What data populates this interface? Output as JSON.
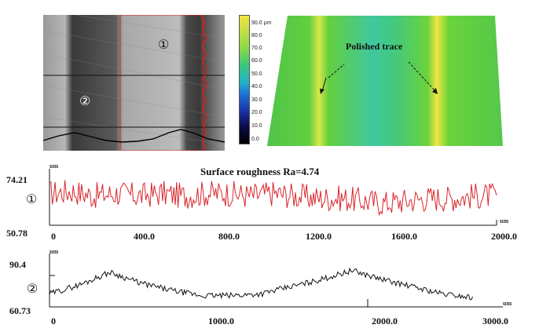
{
  "micrograph": {
    "marker_1": "①",
    "marker_2": "②"
  },
  "color_scale": {
    "ticks": [
      "90.0 µm",
      "80.0",
      "70.0",
      "60.0",
      "50.0",
      "40.0",
      "30.0",
      "20.0",
      "10.0",
      "0.0"
    ]
  },
  "heightmap": {
    "annotation": "Polished trace"
  },
  "profile_1": {
    "title": "Surface roughness Ra=4.74",
    "marker": "①",
    "unit_label": "um",
    "y_max": "74.21",
    "y_min": "50.78",
    "x_ticks": [
      "0",
      "400.0",
      "800.0",
      "1200.0",
      "1600.0",
      "2000.0"
    ],
    "line_color": "#d8262b"
  },
  "profile_2": {
    "marker": "②",
    "unit_label": "um",
    "y_max": "90.4",
    "y_min": "60.73",
    "x_ticks": [
      "0",
      "1000.0",
      "2000.0",
      "3000.0"
    ],
    "line_color": "#111111"
  },
  "chart_data": [
    {
      "type": "line",
      "title": "Surface roughness Ra=4.74",
      "xlabel": "",
      "ylabel": "um",
      "xlim": [
        0,
        2000
      ],
      "ylim": [
        50.78,
        74.21
      ],
      "x": [
        0,
        100,
        200,
        300,
        400,
        500,
        600,
        700,
        800,
        900,
        1000,
        1100,
        1200,
        1300,
        1400,
        1500,
        1600,
        1700,
        1800,
        1900,
        2000
      ],
      "series": [
        {
          "values": [
            64,
            65,
            63,
            64,
            63,
            64,
            63,
            64,
            64,
            63,
            64,
            63,
            62,
            62,
            61,
            60,
            61,
            62,
            62,
            63,
            63
          ]
        }
      ]
    },
    {
      "type": "line",
      "xlabel": "",
      "ylabel": "um",
      "xlim": [
        0,
        3000
      ],
      "ylim": [
        60.73,
        90.4
      ],
      "x": [
        0,
        200,
        400,
        600,
        800,
        1000,
        1200,
        1400,
        1600,
        1800,
        2000,
        2200,
        2400,
        2600,
        2800
      ],
      "series": [
        {
          "values": [
            68,
            73,
            80,
            74,
            70,
            67,
            67,
            68,
            72,
            76,
            81,
            76,
            72,
            68,
            66
          ]
        }
      ]
    }
  ]
}
